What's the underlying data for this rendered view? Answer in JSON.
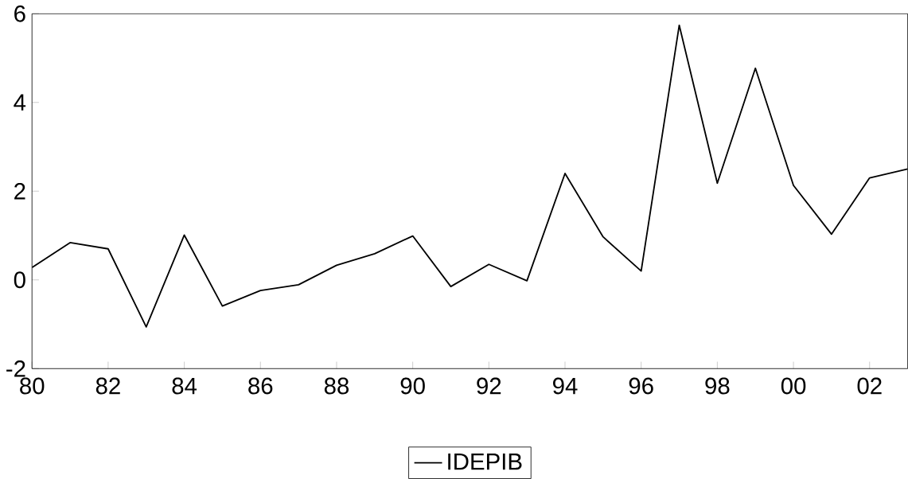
{
  "chart_data": {
    "type": "line",
    "x": [
      1980,
      1981,
      1982,
      1983,
      1984,
      1985,
      1986,
      1987,
      1988,
      1989,
      1990,
      1991,
      1992,
      1993,
      1994,
      1995,
      1996,
      1997,
      1998,
      1999,
      2000,
      2001,
      2002,
      2003
    ],
    "series": [
      {
        "name": "IDEPIB",
        "color": "#000000",
        "values": [
          0.28,
          0.84,
          0.7,
          -1.06,
          1.01,
          -0.59,
          -0.24,
          -0.11,
          0.33,
          0.59,
          0.99,
          -0.15,
          0.35,
          -0.02,
          2.4,
          0.97,
          0.2,
          5.74,
          2.18,
          4.77,
          2.13,
          1.03,
          2.3,
          2.5
        ]
      }
    ],
    "xlim": [
      1980,
      2003
    ],
    "xticks": [
      {
        "value": 1980,
        "label": "80"
      },
      {
        "value": 1982,
        "label": "82"
      },
      {
        "value": 1984,
        "label": "84"
      },
      {
        "value": 1986,
        "label": "86"
      },
      {
        "value": 1988,
        "label": "88"
      },
      {
        "value": 1990,
        "label": "90"
      },
      {
        "value": 1992,
        "label": "92"
      },
      {
        "value": 1994,
        "label": "94"
      },
      {
        "value": 1996,
        "label": "96"
      },
      {
        "value": 1998,
        "label": "98"
      },
      {
        "value": 2000,
        "label": "00"
      },
      {
        "value": 2002,
        "label": "02"
      }
    ],
    "ylim": [
      -2,
      6
    ],
    "yticks": [
      -2,
      0,
      2,
      4,
      6
    ],
    "legend": "bottom",
    "grid": false,
    "marker": "none",
    "line_style": "solid"
  }
}
